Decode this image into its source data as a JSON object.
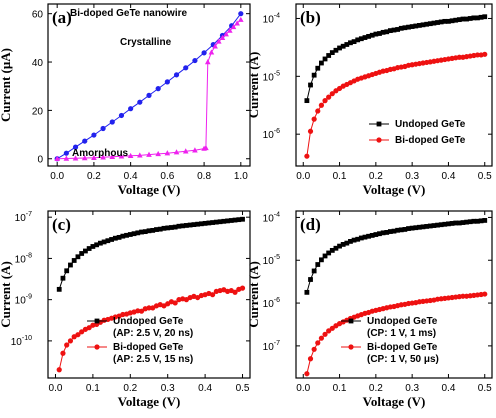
{
  "chart_data": [
    {
      "id": "a",
      "type": "line",
      "panel_label": "(a)",
      "title": "Bi-doped GeTe nanowire",
      "xlabel": "Voltage (V)",
      "ylabel": "Current (μA)",
      "xlim": [
        -0.05,
        1.05
      ],
      "ylim": [
        -3,
        64
      ],
      "yscale": "linear",
      "xticks": [
        0.0,
        0.2,
        0.4,
        0.6,
        0.8,
        1.0
      ],
      "xtick_labels": [
        "0.0",
        "0.2",
        "0.4",
        "0.6",
        "0.8",
        "1.0"
      ],
      "yticks": [
        0,
        20,
        40,
        60
      ],
      "ytick_labels": [
        "0",
        "20",
        "40",
        "60"
      ],
      "annotations": [
        {
          "text": "Crystalline",
          "x": 0.76,
          "y": 53
        },
        {
          "text": "Amorphous",
          "x": 0.1,
          "y": 4.3
        }
      ],
      "series": [
        {
          "marker": "circle",
          "color": "#2222ee",
          "x": [
            0.0,
            0.05,
            0.1,
            0.15,
            0.2,
            0.25,
            0.3,
            0.35,
            0.4,
            0.45,
            0.5,
            0.55,
            0.6,
            0.65,
            0.7,
            0.75,
            0.8,
            0.85,
            0.9,
            0.95,
            1.0
          ],
          "y": [
            0.0,
            2.3,
            4.8,
            7.3,
            9.8,
            12.5,
            15.2,
            17.9,
            20.7,
            23.4,
            26.2,
            29.0,
            31.8,
            34.7,
            37.6,
            40.6,
            43.8,
            47.2,
            51.0,
            55.0,
            60.0
          ]
        },
        {
          "marker": "triangle",
          "color": "#ee22ee",
          "x": [
            0.0,
            0.05,
            0.1,
            0.15,
            0.2,
            0.25,
            0.3,
            0.35,
            0.4,
            0.45,
            0.5,
            0.55,
            0.6,
            0.65,
            0.7,
            0.75,
            0.8,
            0.81,
            0.82,
            0.84,
            0.86,
            0.88,
            0.9,
            0.92,
            0.94,
            0.96,
            0.98,
            1.0
          ],
          "y": [
            0.0,
            0.1,
            0.2,
            0.3,
            0.4,
            0.6,
            0.8,
            1.0,
            1.2,
            1.4,
            1.7,
            2.0,
            2.3,
            2.7,
            3.1,
            3.5,
            4.2,
            4.5,
            40.0,
            44.0,
            46.5,
            48.5,
            50.0,
            51.5,
            53.0,
            54.5,
            56.0,
            57.5
          ]
        }
      ]
    },
    {
      "id": "b",
      "type": "line",
      "panel_label": "(b)",
      "xlabel": "Voltage (V)",
      "ylabel": "Current (A)",
      "xlim": [
        -0.02,
        0.52
      ],
      "ylim_exp": [
        -6.55,
        -3.75
      ],
      "yscale": "log",
      "xticks": [
        0.0,
        0.1,
        0.2,
        0.3,
        0.4,
        0.5
      ],
      "xtick_labels": [
        "0.0",
        "0.1",
        "0.2",
        "0.3",
        "0.4",
        "0.5"
      ],
      "ytick_exps": [
        -4,
        -5,
        -6
      ],
      "ytick_base": "10",
      "legend_position": "bottom-right",
      "series": [
        {
          "name": "Undoped GeTe",
          "marker": "square",
          "color": "#000000",
          "x": [
            0.01,
            0.02,
            0.03,
            0.04,
            0.05,
            0.06,
            0.07,
            0.08,
            0.09,
            0.1,
            0.11,
            0.12,
            0.13,
            0.14,
            0.15,
            0.16,
            0.17,
            0.18,
            0.19,
            0.2,
            0.21,
            0.22,
            0.23,
            0.24,
            0.25,
            0.26,
            0.27,
            0.28,
            0.29,
            0.3,
            0.31,
            0.32,
            0.33,
            0.34,
            0.35,
            0.36,
            0.37,
            0.38,
            0.39,
            0.4,
            0.41,
            0.42,
            0.43,
            0.44,
            0.45,
            0.46,
            0.47,
            0.48,
            0.49,
            0.5
          ],
          "y_log10": [
            -5.42,
            -5.15,
            -4.98,
            -4.86,
            -4.77,
            -4.7,
            -4.64,
            -4.59,
            -4.55,
            -4.51,
            -4.48,
            -4.45,
            -4.42,
            -4.4,
            -4.37,
            -4.35,
            -4.33,
            -4.31,
            -4.29,
            -4.27,
            -4.26,
            -4.24,
            -4.23,
            -4.21,
            -4.2,
            -4.19,
            -4.17,
            -4.16,
            -4.15,
            -4.14,
            -4.13,
            -4.12,
            -4.11,
            -4.1,
            -4.09,
            -4.08,
            -4.07,
            -4.06,
            -4.05,
            -4.05,
            -4.04,
            -4.03,
            -4.02,
            -4.01,
            -4.01,
            -4.0,
            -3.99,
            -3.99,
            -3.98,
            -3.97
          ]
        },
        {
          "name": "Bi-doped GeTe",
          "marker": "circle",
          "color": "#ee1111",
          "x": [
            0.01,
            0.02,
            0.03,
            0.04,
            0.05,
            0.06,
            0.07,
            0.08,
            0.09,
            0.1,
            0.11,
            0.12,
            0.13,
            0.14,
            0.15,
            0.16,
            0.17,
            0.18,
            0.19,
            0.2,
            0.21,
            0.22,
            0.23,
            0.24,
            0.25,
            0.26,
            0.27,
            0.28,
            0.29,
            0.3,
            0.31,
            0.32,
            0.33,
            0.34,
            0.35,
            0.36,
            0.37,
            0.38,
            0.39,
            0.4,
            0.41,
            0.42,
            0.43,
            0.44,
            0.45,
            0.46,
            0.47,
            0.48,
            0.49,
            0.5
          ],
          "y_log10": [
            -6.38,
            -5.95,
            -5.74,
            -5.6,
            -5.5,
            -5.42,
            -5.36,
            -5.3,
            -5.25,
            -5.21,
            -5.17,
            -5.14,
            -5.11,
            -5.08,
            -5.05,
            -5.03,
            -5.01,
            -4.99,
            -4.97,
            -4.95,
            -4.93,
            -4.91,
            -4.9,
            -4.88,
            -4.87,
            -4.85,
            -4.84,
            -4.83,
            -4.81,
            -4.8,
            -4.79,
            -4.78,
            -4.77,
            -4.76,
            -4.75,
            -4.74,
            -4.73,
            -4.72,
            -4.71,
            -4.7,
            -4.69,
            -4.68,
            -4.67,
            -4.67,
            -4.66,
            -4.65,
            -4.64,
            -4.63,
            -4.63,
            -4.62
          ]
        }
      ]
    },
    {
      "id": "c",
      "type": "line",
      "panel_label": "(c)",
      "xlabel": "Voltage (V)",
      "ylabel": "Current (A)",
      "xlim": [
        -0.02,
        0.52
      ],
      "ylim_exp": [
        -10.9,
        -6.85
      ],
      "yscale": "log",
      "xticks": [
        0.0,
        0.1,
        0.2,
        0.3,
        0.4,
        0.5
      ],
      "xtick_labels": [
        "0.0",
        "0.1",
        "0.2",
        "0.3",
        "0.4",
        "0.5"
      ],
      "ytick_exps": [
        -7,
        -8,
        -9,
        -10
      ],
      "ytick_base": "10",
      "legend_position": "bottom-right",
      "series": [
        {
          "name": "Undoped GeTe",
          "name2": "(AP: 2.5 V, 20 ns)",
          "marker": "square",
          "color": "#000000",
          "x": [
            0.01,
            0.02,
            0.03,
            0.04,
            0.05,
            0.06,
            0.07,
            0.08,
            0.09,
            0.1,
            0.11,
            0.12,
            0.13,
            0.14,
            0.15,
            0.16,
            0.17,
            0.18,
            0.19,
            0.2,
            0.21,
            0.22,
            0.23,
            0.24,
            0.25,
            0.26,
            0.27,
            0.28,
            0.29,
            0.3,
            0.31,
            0.32,
            0.33,
            0.34,
            0.35,
            0.36,
            0.37,
            0.38,
            0.39,
            0.4,
            0.41,
            0.42,
            0.43,
            0.44,
            0.45,
            0.46,
            0.47,
            0.48,
            0.49,
            0.5
          ],
          "y_log10": [
            -8.75,
            -8.48,
            -8.3,
            -8.16,
            -8.05,
            -7.96,
            -7.88,
            -7.82,
            -7.76,
            -7.71,
            -7.67,
            -7.63,
            -7.6,
            -7.57,
            -7.54,
            -7.51,
            -7.49,
            -7.46,
            -7.44,
            -7.42,
            -7.4,
            -7.38,
            -7.36,
            -7.35,
            -7.33,
            -7.32,
            -7.3,
            -7.29,
            -7.27,
            -7.26,
            -7.25,
            -7.24,
            -7.22,
            -7.21,
            -7.2,
            -7.19,
            -7.18,
            -7.17,
            -7.16,
            -7.15,
            -7.14,
            -7.13,
            -7.12,
            -7.11,
            -7.1,
            -7.09,
            -7.08,
            -7.07,
            -7.06,
            -7.05
          ]
        },
        {
          "name": "Bi-doped GeTe",
          "name2": "(AP: 2.5 V, 15 ns)",
          "marker": "circle",
          "color": "#ee1111",
          "x": [
            0.01,
            0.02,
            0.03,
            0.04,
            0.05,
            0.06,
            0.07,
            0.08,
            0.09,
            0.1,
            0.11,
            0.12,
            0.13,
            0.14,
            0.15,
            0.16,
            0.17,
            0.18,
            0.19,
            0.2,
            0.21,
            0.22,
            0.23,
            0.24,
            0.25,
            0.26,
            0.27,
            0.28,
            0.29,
            0.3,
            0.31,
            0.32,
            0.33,
            0.34,
            0.35,
            0.36,
            0.37,
            0.38,
            0.39,
            0.4,
            0.41,
            0.42,
            0.43,
            0.44,
            0.45,
            0.46,
            0.47,
            0.48,
            0.49,
            0.5
          ],
          "y_log10": [
            -10.7,
            -10.3,
            -10.1,
            -10.0,
            -9.9,
            -9.85,
            -9.78,
            -9.72,
            -9.68,
            -9.62,
            -9.6,
            -9.55,
            -9.5,
            -9.48,
            -9.45,
            -9.42,
            -9.4,
            -9.36,
            -9.35,
            -9.32,
            -9.3,
            -9.27,
            -9.28,
            -9.22,
            -9.2,
            -9.2,
            -9.15,
            -9.12,
            -9.15,
            -9.1,
            -9.05,
            -9.08,
            -9.0,
            -8.98,
            -9.0,
            -8.95,
            -8.92,
            -8.95,
            -8.9,
            -8.88,
            -8.85,
            -8.88,
            -8.8,
            -8.78,
            -8.76,
            -8.8,
            -8.78,
            -8.82,
            -8.75,
            -8.72
          ]
        }
      ]
    },
    {
      "id": "d",
      "type": "line",
      "panel_label": "(d)",
      "xlabel": "Voltage (V)",
      "ylabel": "Current (A)",
      "xlim": [
        -0.02,
        0.52
      ],
      "ylim_exp": [
        -7.75,
        -3.85
      ],
      "yscale": "log",
      "xticks": [
        0.0,
        0.1,
        0.2,
        0.3,
        0.4,
        0.5
      ],
      "xtick_labels": [
        "0.0",
        "0.1",
        "0.2",
        "0.3",
        "0.4",
        "0.5"
      ],
      "ytick_exps": [
        -4,
        -5,
        -6,
        -7
      ],
      "ytick_base": "10",
      "legend_position": "bottom-right",
      "series": [
        {
          "name": "Undoped GeTe",
          "name2": "(CP: 1 V, 1 ms)",
          "marker": "square",
          "color": "#000000",
          "x": [
            0.01,
            0.02,
            0.03,
            0.04,
            0.05,
            0.06,
            0.07,
            0.08,
            0.09,
            0.1,
            0.11,
            0.12,
            0.13,
            0.14,
            0.15,
            0.16,
            0.17,
            0.18,
            0.19,
            0.2,
            0.21,
            0.22,
            0.23,
            0.24,
            0.25,
            0.26,
            0.27,
            0.28,
            0.29,
            0.3,
            0.31,
            0.32,
            0.33,
            0.34,
            0.35,
            0.36,
            0.37,
            0.38,
            0.39,
            0.4,
            0.41,
            0.42,
            0.43,
            0.44,
            0.45,
            0.46,
            0.47,
            0.48,
            0.49,
            0.5
          ],
          "y_log10": [
            -5.75,
            -5.45,
            -5.25,
            -5.1,
            -4.99,
            -4.9,
            -4.83,
            -4.77,
            -4.72,
            -4.67,
            -4.63,
            -4.6,
            -4.56,
            -4.53,
            -4.51,
            -4.48,
            -4.46,
            -4.44,
            -4.42,
            -4.4,
            -4.38,
            -4.36,
            -4.35,
            -4.33,
            -4.32,
            -4.3,
            -4.29,
            -4.28,
            -4.26,
            -4.25,
            -4.24,
            -4.23,
            -4.22,
            -4.21,
            -4.2,
            -4.19,
            -4.18,
            -4.17,
            -4.16,
            -4.15,
            -4.14,
            -4.13,
            -4.13,
            -4.12,
            -4.11,
            -4.1,
            -4.09,
            -4.09,
            -4.08,
            -4.07
          ]
        },
        {
          "name": "Bi-doped GeTe",
          "name2": "(CP: 1 V, 50 μs)",
          "marker": "circle",
          "color": "#ee1111",
          "x": [
            0.01,
            0.02,
            0.03,
            0.04,
            0.05,
            0.06,
            0.07,
            0.08,
            0.09,
            0.1,
            0.11,
            0.12,
            0.13,
            0.14,
            0.15,
            0.16,
            0.17,
            0.18,
            0.19,
            0.2,
            0.21,
            0.22,
            0.23,
            0.24,
            0.25,
            0.26,
            0.27,
            0.28,
            0.29,
            0.3,
            0.31,
            0.32,
            0.33,
            0.34,
            0.35,
            0.36,
            0.37,
            0.38,
            0.39,
            0.4,
            0.41,
            0.42,
            0.43,
            0.44,
            0.45,
            0.46,
            0.47,
            0.48,
            0.49,
            0.5
          ],
          "y_log10": [
            -7.65,
            -7.3,
            -7.08,
            -6.93,
            -6.82,
            -6.73,
            -6.65,
            -6.59,
            -6.53,
            -6.48,
            -6.44,
            -6.4,
            -6.36,
            -6.33,
            -6.3,
            -6.27,
            -6.24,
            -6.22,
            -6.19,
            -6.17,
            -6.15,
            -6.13,
            -6.11,
            -6.09,
            -6.08,
            -6.06,
            -6.04,
            -6.03,
            -6.01,
            -6.0,
            -5.99,
            -5.97,
            -5.96,
            -5.95,
            -5.94,
            -5.93,
            -5.91,
            -5.9,
            -5.89,
            -5.88,
            -5.87,
            -5.86,
            -5.85,
            -5.84,
            -5.84,
            -5.83,
            -5.82,
            -5.81,
            -5.8,
            -5.79
          ]
        }
      ]
    }
  ]
}
